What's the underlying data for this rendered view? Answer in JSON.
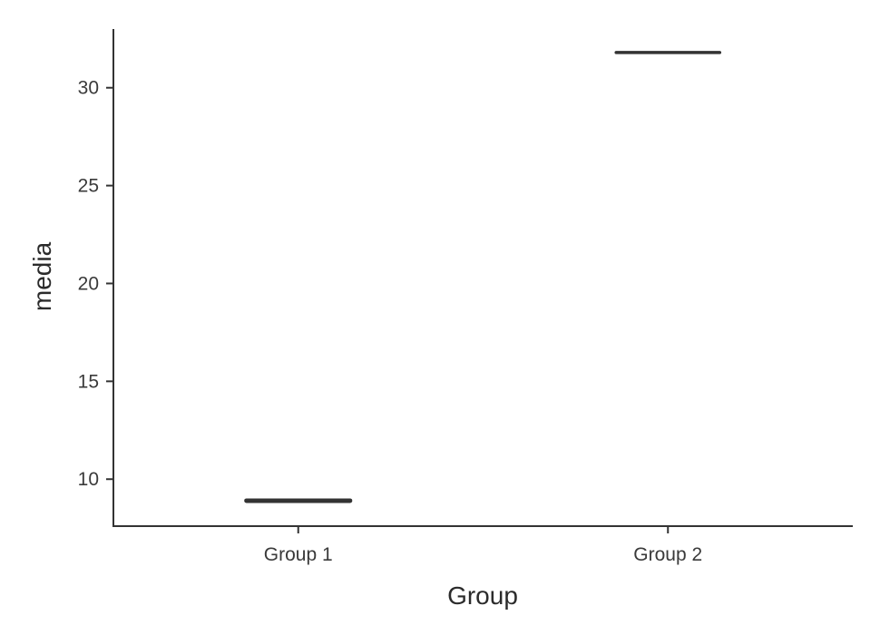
{
  "chart_data": {
    "type": "boxplot",
    "xlabel": "Group",
    "ylabel": "media",
    "categories": [
      "Group 1",
      "Group 2"
    ],
    "values": [
      8.9,
      31.8
    ],
    "ylim": [
      7.6,
      33.0
    ],
    "yticks": [
      10,
      15,
      20,
      25,
      30
    ],
    "grid": false,
    "legend": "none",
    "line_color": "#333333"
  }
}
